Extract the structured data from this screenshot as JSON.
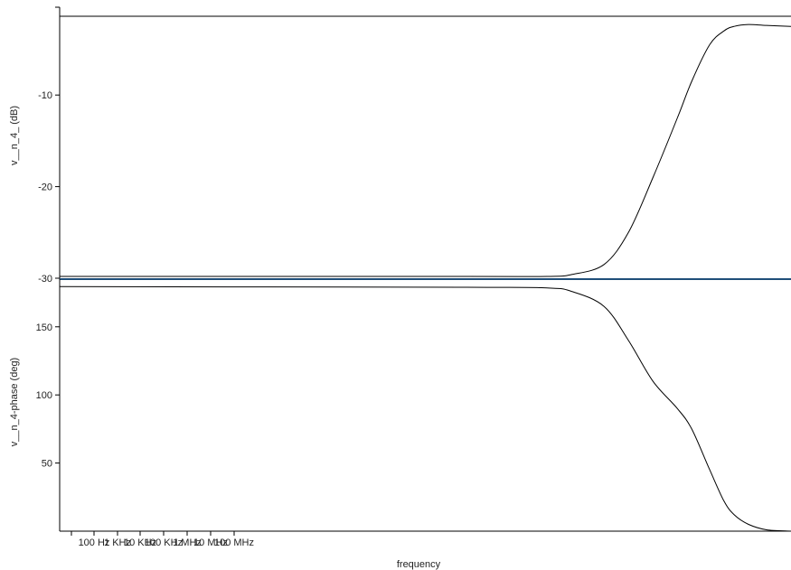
{
  "chart_data": [
    {
      "type": "line",
      "xlabel": "",
      "ylabel": "v__n_4_ (dB)",
      "x_scale": "log",
      "xlim": [
        10,
        10000000000
      ],
      "ylim": [
        -30.1,
        -1.4
      ],
      "yticks": [
        -10,
        -20,
        -30
      ],
      "ytick_labels": [
        "-10",
        "-20",
        "-30"
      ],
      "grid": false,
      "series": [
        {
          "color": "#000000",
          "x": [
            10,
            1000000,
            10000000,
            20000000,
            50000000,
            100000000,
            200000000,
            400000000,
            600000000,
            1000000000,
            1500000000,
            2000000000,
            3000000000,
            5000000000,
            10000000000
          ],
          "y": [
            -29.8,
            -29.8,
            -29.8,
            -29.6,
            -28.5,
            -25.0,
            -19.0,
            -12.5,
            -8.5,
            -4.5,
            -3.0,
            -2.5,
            -2.3,
            -2.4,
            -2.5
          ]
        }
      ]
    },
    {
      "type": "line",
      "xlabel": "frequency",
      "ylabel": "v__n_4-phase (deg)",
      "x_scale": "log",
      "xlim": [
        10,
        10000000000
      ],
      "ylim": [
        0,
        185
      ],
      "yticks": [
        150,
        100,
        50
      ],
      "ytick_labels": [
        "150",
        "100",
        "50"
      ],
      "xtick_labels": [
        "100 Hz",
        "1 KHz",
        "10 KHz",
        "100 KHz",
        "1 MHz",
        "10 MHz",
        "100 MHz"
      ],
      "grid": false,
      "series": [
        {
          "color": "#000000",
          "x": [
            10,
            1000000,
            10000000,
            20000000,
            50000000,
            100000000,
            200000000,
            400000000,
            600000000,
            1000000000,
            1500000000,
            2000000000,
            3000000000,
            5000000000,
            10000000000
          ],
          "y": [
            179.5,
            179,
            178.5,
            176,
            165,
            140,
            110,
            90,
            75,
            45,
            22,
            12,
            5,
            1,
            0
          ]
        }
      ]
    }
  ]
}
